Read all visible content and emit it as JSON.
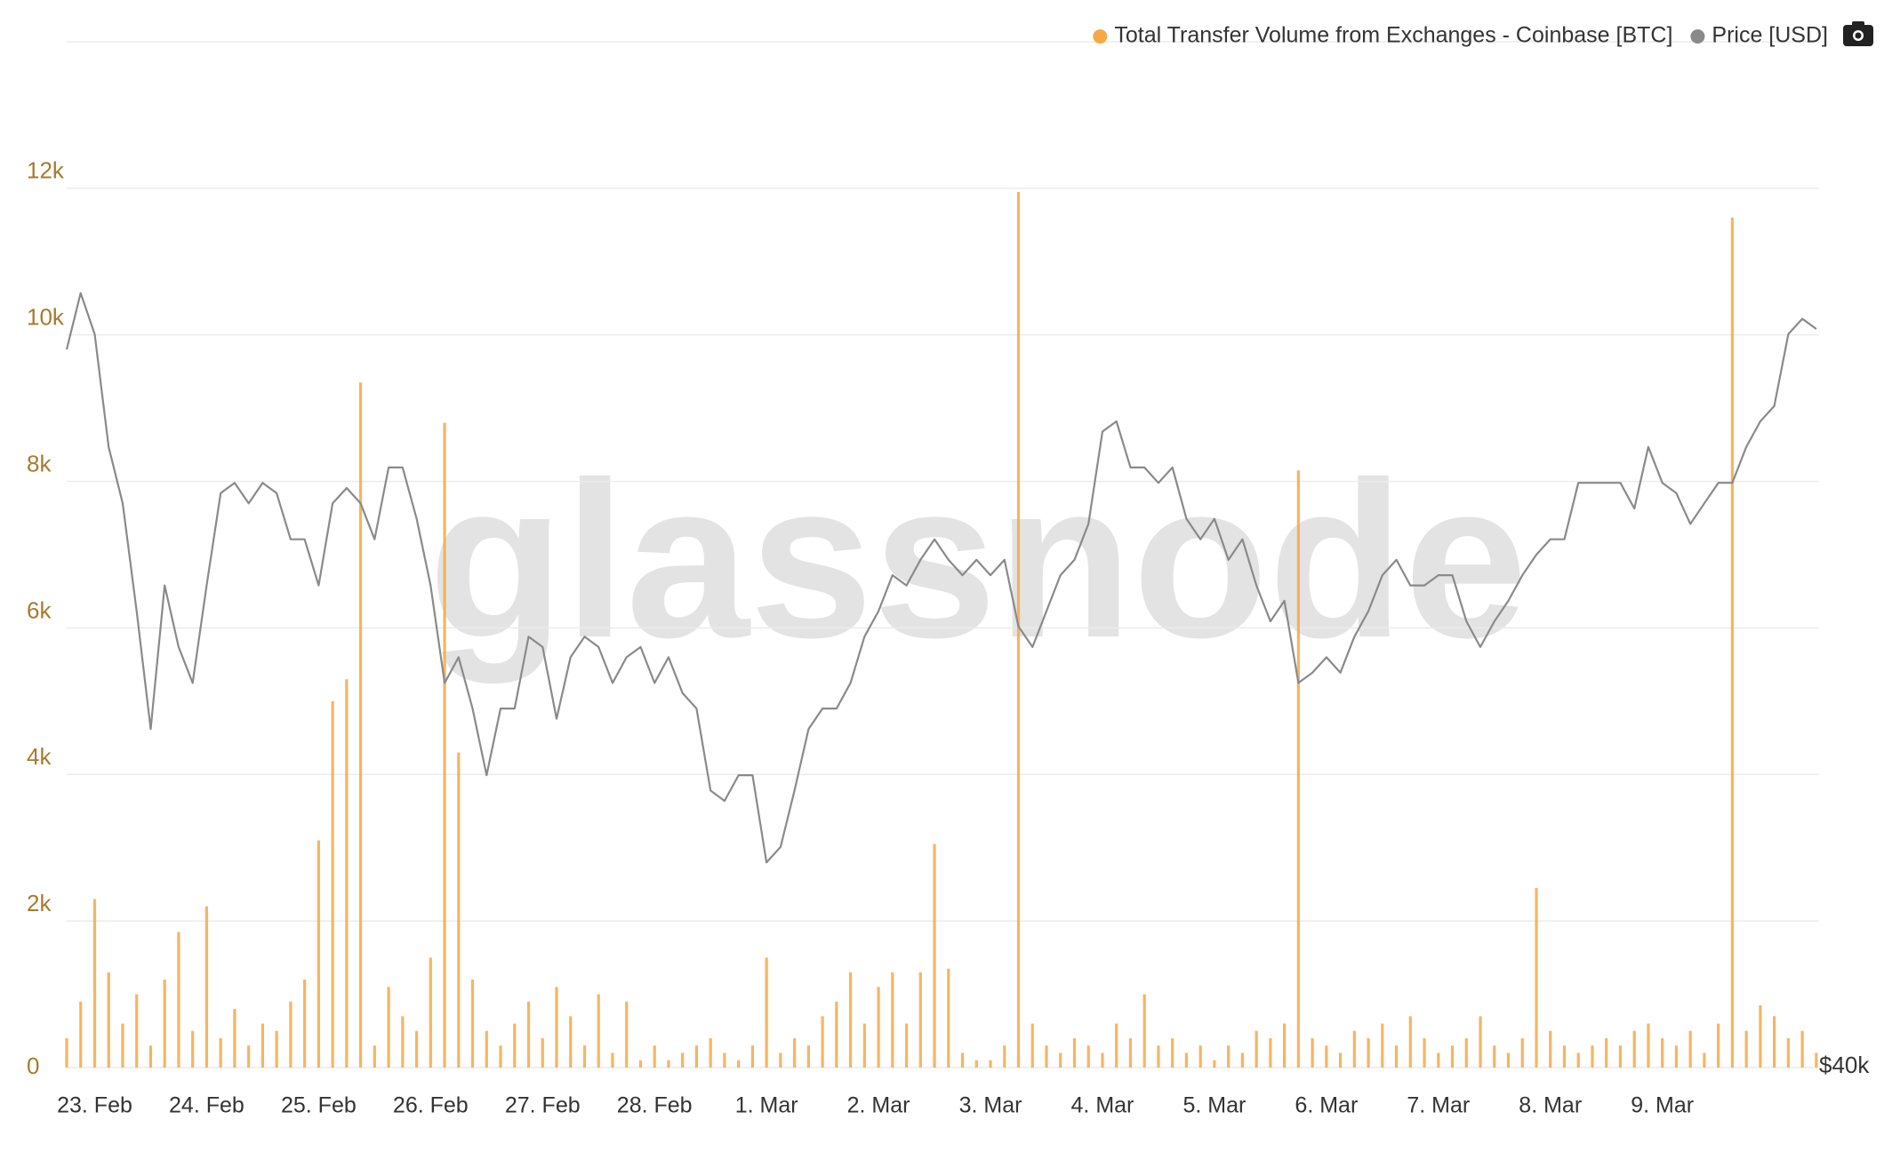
{
  "chart_data": {
    "type": "bar",
    "watermark": "glassnode",
    "legend": "top-right",
    "grid": true,
    "xlim": [
      -0.25,
      15.4
    ],
    "xticks": [
      {
        "value": 0,
        "label": "23. Feb"
      },
      {
        "value": 1,
        "label": "24. Feb"
      },
      {
        "value": 2,
        "label": "25. Feb"
      },
      {
        "value": 3,
        "label": "26. Feb"
      },
      {
        "value": 4,
        "label": "27. Feb"
      },
      {
        "value": 5,
        "label": "28. Feb"
      },
      {
        "value": 6,
        "label": "1. Mar"
      },
      {
        "value": 7,
        "label": "2. Mar"
      },
      {
        "value": 8,
        "label": "3. Mar"
      },
      {
        "value": 9,
        "label": "4. Mar"
      },
      {
        "value": 10,
        "label": "5. Mar"
      },
      {
        "value": 11,
        "label": "6. Mar"
      },
      {
        "value": 12,
        "label": "7. Mar"
      },
      {
        "value": 13,
        "label": "8. Mar"
      },
      {
        "value": 14,
        "label": "9. Mar"
      }
    ],
    "ylim": [
      0,
      14000
    ],
    "yticks": [
      0,
      {
        "value": 2000,
        "label": "2k"
      },
      {
        "value": 4000,
        "label": "4k"
      },
      {
        "value": 6000,
        "label": "6k"
      },
      {
        "value": 8000,
        "label": "8k"
      },
      {
        "value": 10000,
        "label": "10k"
      },
      {
        "value": 12000,
        "label": "12k"
      }
    ],
    "y2lim": [
      40000,
      60000
    ],
    "y2ticks": [
      {
        "value": 40000,
        "label": "$40k"
      }
    ],
    "x": [
      -0.25,
      -0.125,
      0,
      0.125,
      0.25,
      0.375,
      0.5,
      0.625,
      0.75,
      0.875,
      1,
      1.125,
      1.25,
      1.375,
      1.5,
      1.625,
      1.75,
      1.875,
      2,
      2.125,
      2.25,
      2.375,
      2.5,
      2.625,
      2.75,
      2.875,
      3,
      3.125,
      3.25,
      3.375,
      3.5,
      3.625,
      3.75,
      3.875,
      4,
      4.125,
      4.25,
      4.375,
      4.5,
      4.625,
      4.75,
      4.875,
      5,
      5.125,
      5.25,
      5.375,
      5.5,
      5.625,
      5.75,
      5.875,
      6,
      6.125,
      6.25,
      6.375,
      6.5,
      6.625,
      6.75,
      6.875,
      7,
      7.125,
      7.25,
      7.375,
      7.5,
      7.625,
      7.75,
      7.875,
      8,
      8.125,
      8.25,
      8.375,
      8.5,
      8.625,
      8.75,
      8.875,
      9,
      9.125,
      9.25,
      9.375,
      9.5,
      9.625,
      9.75,
      9.875,
      10,
      10.125,
      10.25,
      10.375,
      10.5,
      10.625,
      10.75,
      10.875,
      11,
      11.125,
      11.25,
      11.375,
      11.5,
      11.625,
      11.75,
      11.875,
      12,
      12.125,
      12.25,
      12.375,
      12.5,
      12.625,
      12.75,
      12.875,
      13,
      13.125,
      13.25,
      13.375,
      13.5,
      13.625,
      13.75,
      13.875,
      14,
      14.125,
      14.25,
      14.375,
      14.5,
      14.625,
      14.75,
      14.875,
      15,
      15.125,
      15.25,
      15.375
    ],
    "series": [
      {
        "name": "Total Transfer Volume from Exchanges - Coinbase [BTC]",
        "type": "bar",
        "color": "#f5a845",
        "values": [
          400,
          900,
          2300,
          1300,
          600,
          1000,
          300,
          1200,
          1850,
          500,
          2200,
          400,
          800,
          300,
          600,
          500,
          900,
          1200,
          3100,
          5000,
          5300,
          9350,
          300,
          1100,
          700,
          500,
          1500,
          8800,
          4300,
          1200,
          500,
          300,
          600,
          900,
          400,
          1100,
          700,
          300,
          1000,
          200,
          900,
          100,
          300,
          100,
          200,
          300,
          400,
          200,
          100,
          300,
          1500,
          200,
          400,
          300,
          700,
          900,
          1300,
          600,
          1100,
          1300,
          600,
          1300,
          3050,
          1350,
          200,
          100,
          100,
          300,
          11950,
          600,
          300,
          200,
          400,
          300,
          200,
          600,
          400,
          1000,
          300,
          400,
          200,
          300,
          100,
          300,
          200,
          500,
          400,
          600,
          8150,
          400,
          300,
          200,
          500,
          400,
          600,
          300,
          700,
          400,
          200,
          300,
          400,
          700,
          300,
          200,
          400,
          2450,
          500,
          300,
          200,
          300,
          400,
          300,
          500,
          600,
          400,
          300,
          500,
          200,
          600,
          11600,
          500,
          850,
          700,
          400,
          500,
          200
        ]
      },
      {
        "name": "Price [USD]",
        "type": "line",
        "axis": "y2",
        "color": "#8a8a8a",
        "values": [
          54000,
          55100,
          54300,
          52100,
          51000,
          48900,
          46600,
          49400,
          48200,
          47500,
          49400,
          51200,
          51400,
          51000,
          51400,
          51200,
          50300,
          50300,
          49400,
          51000,
          51300,
          51000,
          50300,
          51700,
          51700,
          50700,
          49400,
          47500,
          48000,
          47000,
          45700,
          47000,
          47000,
          48400,
          48200,
          46800,
          48000,
          48400,
          48200,
          47500,
          48000,
          48200,
          47500,
          48000,
          47300,
          47000,
          45400,
          45200,
          45700,
          45700,
          44000,
          44300,
          45400,
          46600,
          47000,
          47000,
          47500,
          48400,
          48900,
          49600,
          49400,
          49900,
          50300,
          49900,
          49600,
          49900,
          49600,
          49900,
          48600,
          48200,
          48900,
          49600,
          49900,
          50600,
          52400,
          52600,
          51700,
          51700,
          51400,
          51700,
          50700,
          50300,
          50700,
          49900,
          50300,
          49400,
          48700,
          49100,
          47500,
          47700,
          48000,
          47700,
          48400,
          48900,
          49600,
          49900,
          49400,
          49400,
          49600,
          49600,
          48700,
          48200,
          48700,
          49100,
          49600,
          50000,
          50300,
          50300,
          51400,
          51400,
          51400,
          51400,
          50900,
          52100,
          51400,
          51200,
          50600,
          51000,
          51400,
          51400,
          52100,
          52600,
          52900,
          54300,
          54600,
          54400
        ]
      }
    ]
  }
}
